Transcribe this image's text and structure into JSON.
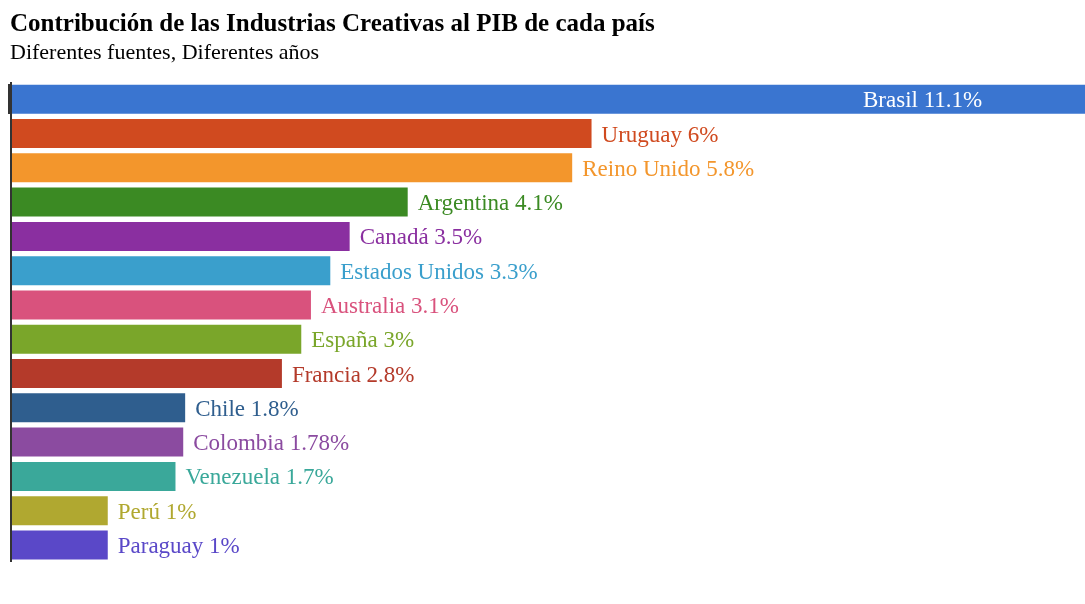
{
  "chart_data": {
    "type": "bar",
    "orientation": "horizontal",
    "title": "Contribución de las Industrias Creativas al PIB de cada país",
    "subtitle": "Diferentes fuentes, Diferentes años",
    "categories": [
      null,
      null,
      null,
      null,
      null,
      null,
      null,
      null,
      null,
      null,
      null,
      null,
      null,
      null
    ],
    "values": [
      11.1,
      6,
      5.8,
      4.1,
      3.5,
      3.3,
      3.1,
      3,
      2.8,
      1.8,
      1.78,
      1.7,
      1,
      1
    ],
    "value_labels": [
      "Brasil 11.1%",
      "Uruguay 6%",
      "Reino Unido 5.8%",
      "Argentina 4.1%",
      "Canadá 3.5%",
      "Estados Unidos 3.3%",
      "Australia 3.1%",
      "España 3%",
      "Francia 2.8%",
      "Chile 1.8%",
      "Colombia 1.78%",
      "Venezuela 1.7%",
      "Perú 1%",
      "Paraguay 1%"
    ],
    "colors": [
      "#3a75d0",
      "#d04a1f",
      "#f3962c",
      "#3b8a23",
      "#8a2fa0",
      "#3a9fcc",
      "#d9527d",
      "#7aa62a",
      "#b43a2a",
      "#2f5e8e",
      "#8b4ba0",
      "#3aa89a",
      "#b0a830",
      "#5a48c8"
    ]
  }
}
